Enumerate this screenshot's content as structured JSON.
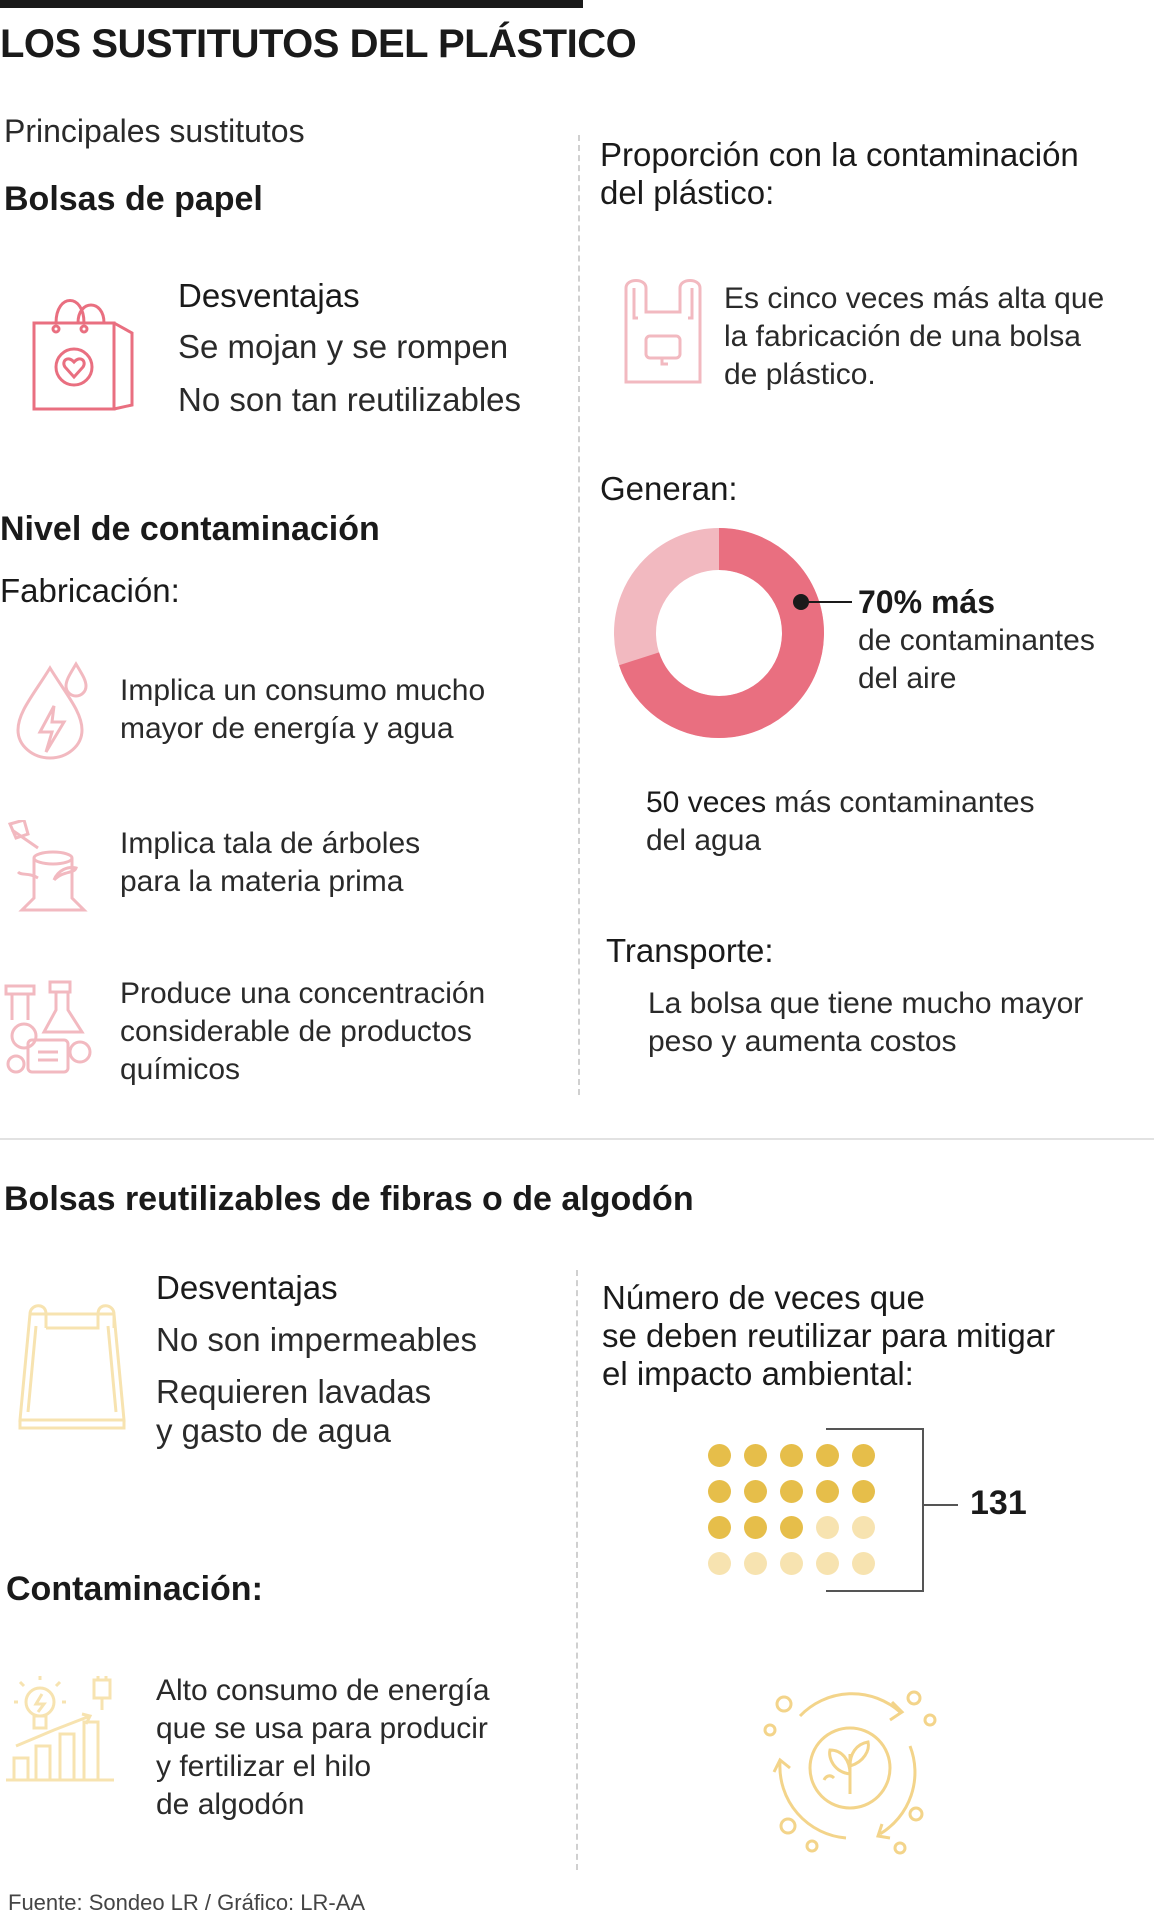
{
  "title": "LOS SUSTITUTOS DEL PLÁSTICO",
  "subtitle": "Principales sustitutos",
  "paper": {
    "heading": "Bolsas de papel",
    "disadvantages_title": "Desventajas",
    "disadvantages": [
      "Se mojan y se rompen",
      "No son tan reutilizables"
    ],
    "pollution_title": "Nivel de contaminación",
    "manufacturing_title": "Fabricación:",
    "impacts": [
      {
        "icon": "water-energy-icon",
        "text": [
          "Implica un consumo mucho",
          "mayor de energía y agua"
        ]
      },
      {
        "icon": "tree-stump-axe-icon",
        "text": [
          "Implica tala de árboles",
          "para la materia prima"
        ]
      },
      {
        "icon": "chemicals-lab-icon",
        "text": [
          "Produce una concentración",
          "considerable de productos",
          "químicos"
        ]
      }
    ],
    "proportion_title": [
      "Proporción con la contaminación",
      "del plástico:"
    ],
    "proportion_text": [
      "Es cinco veces más alta que",
      "la fabricación de una bolsa",
      "de plástico."
    ],
    "generate_title": "Generan:",
    "donut": {
      "value_percent": 70,
      "label_bold": "70% más",
      "label_rest": [
        "de contaminantes",
        "del aire"
      ],
      "main_color": "#e96f80",
      "rest_color": "#f2b9c0"
    },
    "water": {
      "bold": "50 veces",
      "rest": " más contaminantes",
      "line2": "del agua"
    },
    "transport_title": "Transporte:",
    "transport_text": [
      "La bolsa que tiene mucho mayor",
      "peso y aumenta costos"
    ]
  },
  "reusable": {
    "heading": "Bolsas reutilizables de fibras o de algodón",
    "disadvantages_title": "Desventajas",
    "disadvantages": [
      "No son impermeables",
      "Requieren lavadas",
      "y gasto de agua"
    ],
    "pollution_title": "Contaminación:",
    "pollution_text": [
      "Alto consumo de energía",
      "que se usa para producir",
      "y fertilizar el hilo",
      "de algodón"
    ],
    "reuse_title": [
      "Número de veces que",
      "se deben reutilizar para mitigar",
      "el impacto ambiental:"
    ],
    "reuse_value": "131",
    "dots": {
      "total": 20,
      "filled": 13,
      "filled_color": "#e6be4a",
      "empty_color": "#f7e3b0"
    }
  },
  "source": "Fuente: Sondeo LR / Gráfico: LR-AA",
  "colors": {
    "pink": "#e96f80",
    "pink_light": "#f2b9c0",
    "yellow": "#f3d48a"
  }
}
